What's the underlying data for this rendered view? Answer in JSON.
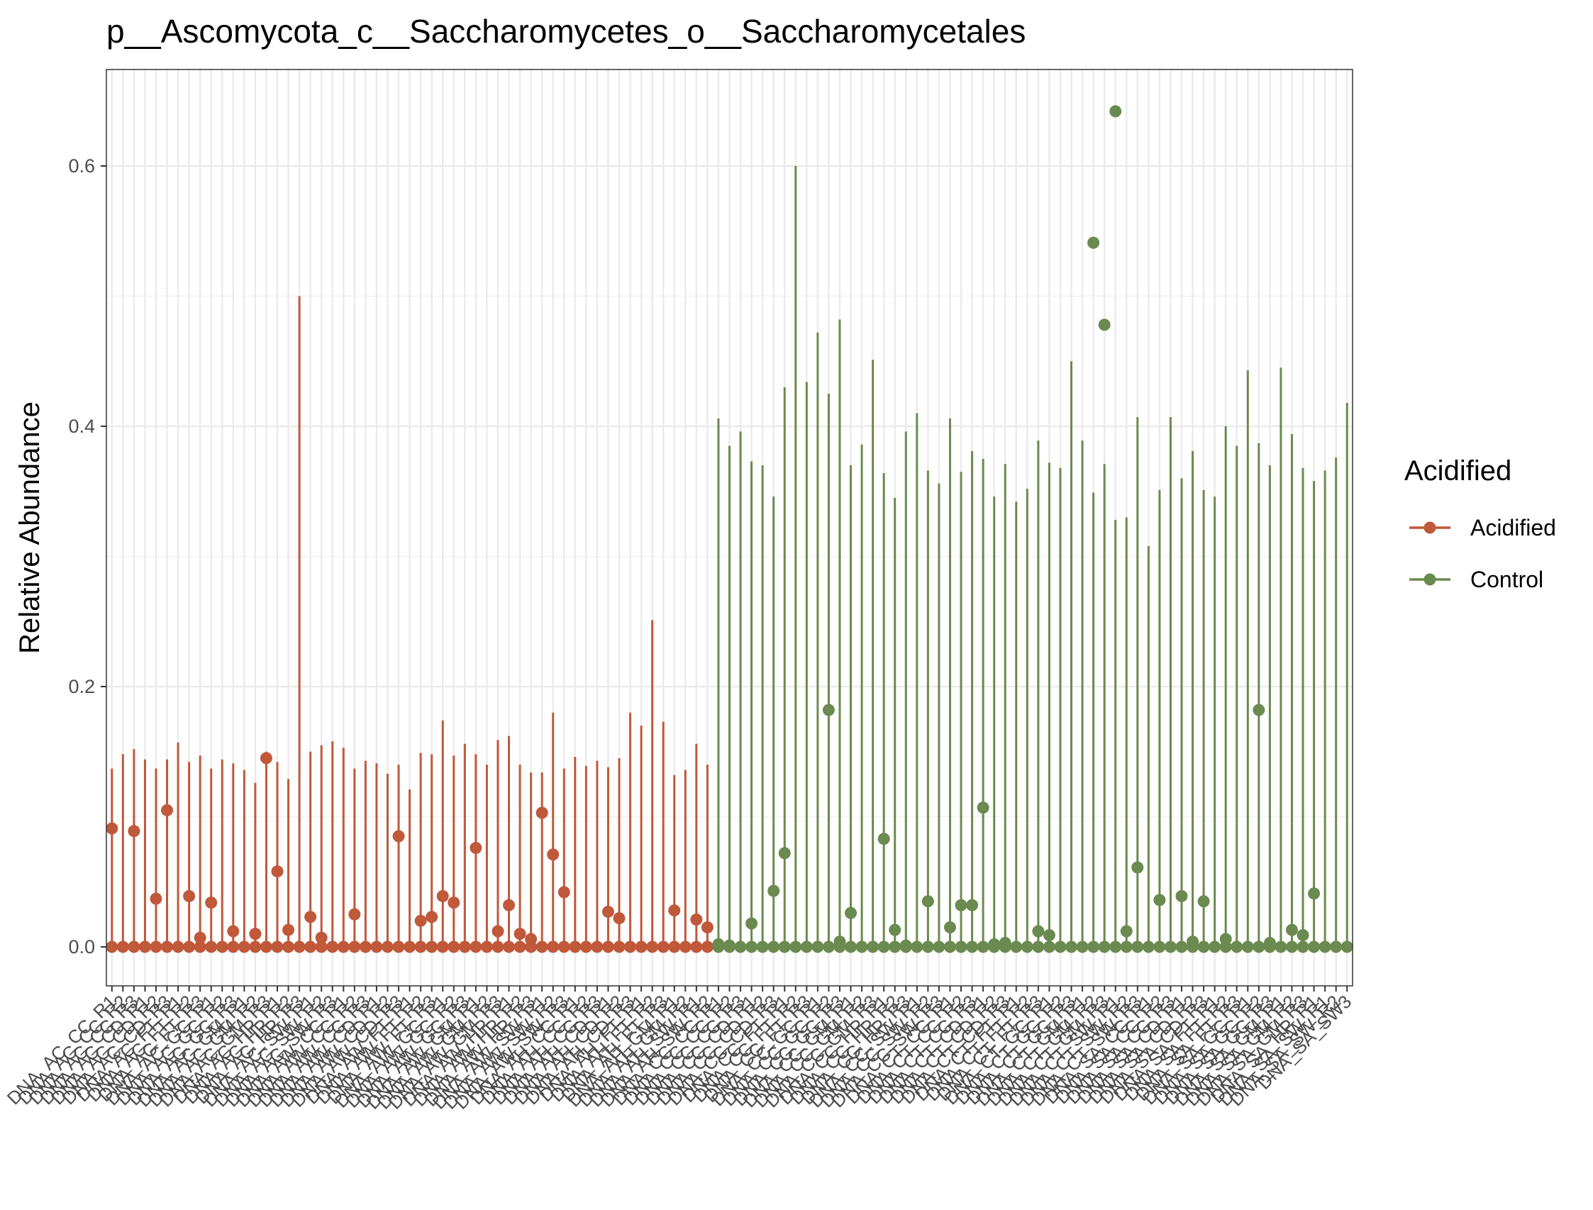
{
  "chart_data": {
    "type": "line",
    "title": "p__Ascomycota_c__Saccharomycetes_o__Saccharomycetales",
    "ylabel": "Relative Abundance",
    "xlabel": "",
    "yticks": [
      "0.0",
      "0.2",
      "0.4",
      "0.6"
    ],
    "ylim": [
      -0.032,
      0.672
    ],
    "grid": true,
    "legend": {
      "title": "Acidified",
      "position": "right",
      "entries": [
        {
          "label": "Acidified",
          "color": "#c0583a"
        },
        {
          "label": "Control",
          "color": "#6a8a4f"
        }
      ]
    },
    "series": [
      {
        "name": "Acidified",
        "color": "#c0583a",
        "samples": [
          {
            "max": 0.137,
            "points": [
              0.091,
              0.0
            ]
          },
          {
            "max": 0.148,
            "points": [
              0.0
            ]
          },
          {
            "max": 0.152,
            "points": [
              0.089,
              0.0
            ]
          },
          {
            "max": 0.144,
            "points": [
              0.0
            ]
          },
          {
            "max": 0.137,
            "points": [
              0.037,
              0.0
            ]
          },
          {
            "max": 0.144,
            "points": [
              0.105,
              0.0
            ]
          },
          {
            "max": 0.157,
            "points": [
              0.0
            ]
          },
          {
            "max": 0.142,
            "points": [
              0.039,
              0.0
            ]
          },
          {
            "max": 0.147,
            "points": [
              0.007,
              0.0
            ]
          },
          {
            "max": 0.137,
            "points": [
              0.034,
              0.0
            ]
          },
          {
            "max": 0.144,
            "points": [
              0.0
            ]
          },
          {
            "max": 0.141,
            "points": [
              0.012,
              0.0
            ]
          },
          {
            "max": 0.136,
            "points": [
              0.0
            ]
          },
          {
            "max": 0.126,
            "points": [
              0.01,
              0.0
            ]
          },
          {
            "max": 0.15,
            "points": [
              0.145,
              0.0
            ]
          },
          {
            "max": 0.142,
            "points": [
              0.058,
              0.0
            ]
          },
          {
            "max": 0.129,
            "points": [
              0.013,
              0.0
            ]
          },
          {
            "max": 0.5,
            "points": [
              0.0
            ]
          },
          {
            "max": 0.15,
            "points": [
              0.023,
              0.0
            ]
          },
          {
            "max": 0.155,
            "points": [
              0.007,
              0.0
            ]
          },
          {
            "max": 0.158,
            "points": [
              0.0
            ]
          },
          {
            "max": 0.153,
            "points": [
              0.0
            ]
          },
          {
            "max": 0.137,
            "points": [
              0.025,
              0.0
            ]
          },
          {
            "max": 0.143,
            "points": [
              0.0
            ]
          },
          {
            "max": 0.141,
            "points": [
              0.0
            ]
          },
          {
            "max": 0.133,
            "points": [
              0.0
            ]
          },
          {
            "max": 0.14,
            "points": [
              0.085,
              0.0
            ]
          },
          {
            "max": 0.121,
            "points": [
              0.0
            ]
          },
          {
            "max": 0.149,
            "points": [
              0.02,
              0.0
            ]
          },
          {
            "max": 0.148,
            "points": [
              0.023,
              0.0
            ]
          },
          {
            "max": 0.174,
            "points": [
              0.039,
              0.0
            ]
          },
          {
            "max": 0.147,
            "points": [
              0.034,
              0.0
            ]
          },
          {
            "max": 0.156,
            "points": [
              0.0
            ]
          },
          {
            "max": 0.148,
            "points": [
              0.076,
              0.0
            ]
          },
          {
            "max": 0.14,
            "points": [
              0.0
            ]
          },
          {
            "max": 0.159,
            "points": [
              0.012,
              0.0
            ]
          },
          {
            "max": 0.162,
            "points": [
              0.032,
              0.0
            ]
          },
          {
            "max": 0.14,
            "points": [
              0.01,
              0.0
            ]
          },
          {
            "max": 0.134,
            "points": [
              0.006,
              0.0
            ]
          },
          {
            "max": 0.134,
            "points": [
              0.103,
              0.0
            ]
          },
          {
            "max": 0.18,
            "points": [
              0.071,
              0.0
            ]
          },
          {
            "max": 0.137,
            "points": [
              0.042,
              0.0
            ]
          },
          {
            "max": 0.146,
            "points": [
              0.0
            ]
          },
          {
            "max": 0.139,
            "points": [
              0.0
            ]
          },
          {
            "max": 0.143,
            "points": [
              0.0
            ]
          },
          {
            "max": 0.138,
            "points": [
              0.027,
              0.0
            ]
          },
          {
            "max": 0.145,
            "points": [
              0.022,
              0.0
            ]
          },
          {
            "max": 0.18,
            "points": [
              0.0
            ]
          },
          {
            "max": 0.17,
            "points": [
              0.0
            ]
          },
          {
            "max": 0.251,
            "points": [
              0.0
            ]
          },
          {
            "max": 0.173,
            "points": [
              0.0
            ]
          },
          {
            "max": 0.132,
            "points": [
              0.028,
              0.0
            ]
          },
          {
            "max": 0.136,
            "points": [
              0.0
            ]
          },
          {
            "max": 0.156,
            "points": [
              0.021,
              0.0
            ]
          },
          {
            "max": 0.14,
            "points": [
              0.015,
              0.0
            ]
          }
        ]
      },
      {
        "name": "Control",
        "color": "#6a8a4f",
        "samples": [
          {
            "max": 0.406,
            "points": [
              0.002,
              0.0
            ]
          },
          {
            "max": 0.385,
            "points": [
              0.001,
              0.0
            ]
          },
          {
            "max": 0.396,
            "points": [
              0.0
            ]
          },
          {
            "max": 0.373,
            "points": [
              0.018,
              0.0
            ]
          },
          {
            "max": 0.37,
            "points": [
              0.0
            ]
          },
          {
            "max": 0.346,
            "points": [
              0.043,
              0.0
            ]
          },
          {
            "max": 0.43,
            "points": [
              0.072,
              0.0
            ]
          },
          {
            "max": 0.6,
            "points": [
              0.0
            ]
          },
          {
            "max": 0.434,
            "points": [
              0.0
            ]
          },
          {
            "max": 0.472,
            "points": [
              0.0
            ]
          },
          {
            "max": 0.425,
            "points": [
              0.182,
              0.0
            ]
          },
          {
            "max": 0.482,
            "points": [
              0.004,
              0.0
            ]
          },
          {
            "max": 0.37,
            "points": [
              0.026,
              0.0
            ]
          },
          {
            "max": 0.386,
            "points": [
              0.0
            ]
          },
          {
            "max": 0.451,
            "points": [
              0.0
            ]
          },
          {
            "max": 0.364,
            "points": [
              0.083,
              0.0
            ]
          },
          {
            "max": 0.345,
            "points": [
              0.013,
              0.0
            ]
          },
          {
            "max": 0.396,
            "points": [
              0.001,
              0.0
            ]
          },
          {
            "max": 0.41,
            "points": [
              0.0
            ]
          },
          {
            "max": 0.366,
            "points": [
              0.035,
              0.0
            ]
          },
          {
            "max": 0.356,
            "points": [
              0.0
            ]
          },
          {
            "max": 0.406,
            "points": [
              0.015,
              0.0
            ]
          },
          {
            "max": 0.365,
            "points": [
              0.032,
              0.0
            ]
          },
          {
            "max": 0.381,
            "points": [
              0.032,
              0.0
            ]
          },
          {
            "max": 0.375,
            "points": [
              0.107,
              0.0
            ]
          },
          {
            "max": 0.346,
            "points": [
              0.002,
              0.0
            ]
          },
          {
            "max": 0.371,
            "points": [
              0.003,
              0.0
            ]
          },
          {
            "max": 0.342,
            "points": [
              0.0
            ]
          },
          {
            "max": 0.352,
            "points": [
              0.0
            ]
          },
          {
            "max": 0.389,
            "points": [
              0.012,
              0.0
            ]
          },
          {
            "max": 0.372,
            "points": [
              0.009,
              0.0
            ]
          },
          {
            "max": 0.368,
            "points": [
              0.0
            ]
          },
          {
            "max": 0.45,
            "points": [
              0.0
            ]
          },
          {
            "max": 0.389,
            "points": [
              0.0
            ]
          },
          {
            "max": 0.349,
            "points": [
              0.541,
              0.0
            ]
          },
          {
            "max": 0.371,
            "points": [
              0.478,
              0.0
            ]
          },
          {
            "max": 0.328,
            "points": [
              0.642,
              0.0
            ]
          },
          {
            "max": 0.33,
            "points": [
              0.012,
              0.0
            ]
          },
          {
            "max": 0.407,
            "points": [
              0.061,
              0.0
            ]
          },
          {
            "max": 0.308,
            "points": [
              0.0
            ]
          },
          {
            "max": 0.351,
            "points": [
              0.036,
              0.0
            ]
          },
          {
            "max": 0.407,
            "points": [
              0.0
            ]
          },
          {
            "max": 0.36,
            "points": [
              0.039,
              0.0
            ]
          },
          {
            "max": 0.381,
            "points": [
              0.004,
              0.0
            ]
          },
          {
            "max": 0.351,
            "points": [
              0.035,
              0.0
            ]
          },
          {
            "max": 0.346,
            "points": [
              0.0
            ]
          },
          {
            "max": 0.4,
            "points": [
              0.006,
              0.0
            ]
          },
          {
            "max": 0.385,
            "points": [
              0.0
            ]
          },
          {
            "max": 0.443,
            "points": [
              0.0
            ]
          },
          {
            "max": 0.387,
            "points": [
              0.182,
              0.0
            ]
          },
          {
            "max": 0.37,
            "points": [
              0.003,
              0.0
            ]
          },
          {
            "max": 0.445,
            "points": [
              0.0
            ]
          },
          {
            "max": 0.394,
            "points": [
              0.013,
              0.0
            ]
          },
          {
            "max": 0.368,
            "points": [
              0.009,
              0.0
            ]
          },
          {
            "max": 0.358,
            "points": [
              0.041,
              0.0
            ]
          },
          {
            "max": 0.366,
            "points": [
              0.0
            ]
          },
          {
            "max": 0.376,
            "points": [
              0.0
            ]
          },
          {
            "max": 0.418,
            "points": [
              0.0
            ]
          }
        ]
      }
    ],
    "xticklabels": [
      "DNA_AC_CC_R1",
      "DNA_AC_CC_R2",
      "DNA_AC_CC_R3",
      "DNA_AC_CD_R1",
      "DNA_AC_CD_R2",
      "DNA_AC_CD_R3",
      "DNA_AC_FT_R1",
      "DNA_AC_FT_R2",
      "DNA_AC_FT_R3",
      "DNA_AC_GC_R1",
      "DNA_AC_GC_R2",
      "DNA_AC_GC_R3",
      "DNA_AC_GM_R1",
      "DNA_AC_GM_R2",
      "DNA_AC_GM_R3",
      "DNA_AC_HP_R1",
      "DNA_AC_HP_R2",
      "DNA_AC_HP_R3",
      "DNA_AC_SW_R1",
      "DNA_AC_SW_R2",
      "DNA_AC_SW_R3",
      "DNA_AW_CC_R1",
      "DNA_AW_CC_R2",
      "DNA_AW_CC_R3",
      "DNA_AW_CD_R1",
      "DNA_AW_CD_R2",
      "DNA_AW_CD_R3",
      "DNA_AW_FT_R1",
      "DNA_AW_FT_R2",
      "DNA_AW_FT_R3",
      "DNA_AW_GC_R1",
      "DNA_AW_GC_R2",
      "DNA_AW_GC_R3",
      "DNA_AW_GM_R1",
      "DNA_AW_GM_R2",
      "DNA_AW_GM_R3",
      "DNA_AW_HP_R1",
      "DNA_AW_HP_R2",
      "DNA_AW_HP_R3",
      "DNA_AW_SW_R1",
      "DNA_AW_SW_R2",
      "DNA_AW_SW_R3",
      "DNA_AH_CC_R1",
      "DNA_AH_CC_R2",
      "DNA_AH_CC_R3",
      "DNA_AH_CD_R1",
      "DNA_AH_CD_R2",
      "DNA_AH_CD_R3",
      "DNA_AH_FT_R1",
      "DNA_AH_FT_R2",
      "DNA_AH_FT_R3",
      "DNA_AH_GM_R1",
      "DNA_AH_GM_R2",
      "DNA_AH_SW_R1",
      "DNA_AH_SW_R2",
      "DNA_CC_CC_R1",
      "DNA_CC_CC_R2",
      "DNA_CC_CC_R3",
      "DNA_CC_CD_R1",
      "DNA_CC_CD_R2",
      "DNA_CC_CD_R3",
      "DNA_CC_FT_R1",
      "DNA_CC_FT_R2",
      "DNA_CC_FT_R3",
      "DNA_CC_GC_R1",
      "DNA_CC_GC_R2",
      "DNA_CC_GC_R3",
      "DNA_CC_GM_R1",
      "DNA_CC_GM_R2",
      "DNA_CC_GM_R3",
      "DNA_CC_HP_R1",
      "DNA_CC_HP_R2",
      "DNA_CC_HP_R3",
      "DNA_CC_SW_R1",
      "DNA_CC_SW_R2",
      "DNA_CC_SW_R3",
      "DNA_CT_CC_R1",
      "DNA_CT_CC_R2",
      "DNA_CT_CC_R3",
      "DNA_CT_CD_R1",
      "DNA_CT_CD_R2",
      "DNA_CT_CD_R3",
      "DNA_CT_FT_R1",
      "DNA_CT_FT_R2",
      "DNA_CT_FT_R3",
      "DNA_CT_GC_R1",
      "DNA_CT_GC_R2",
      "DNA_CT_GC_R3",
      "DNA_CT_GM_R1",
      "DNA_CT_GM_R2",
      "DNA_CT_GM_R3",
      "DNA_CT_SW_R1",
      "DNA_CT_SW_R2",
      "DNA_CT_SW_R3",
      "DNA_SA_CC_R1",
      "DNA_SA_CC_R2",
      "DNA_SA_CC_R3",
      "DNA_SA_CD_R1",
      "DNA_SA_CD_R2",
      "DNA_SA_CD_R3",
      "DNA_SA_FT_R1",
      "DNA_SA_FT_R2",
      "DNA_SA_FT_R3",
      "DNA_SA_GC_R1",
      "DNA_SA_GC_R2",
      "DNA_SA_GC_R3",
      "DNA_SA_GM_R1",
      "DNA_SA_GM_R2",
      "DNA_SA_GM_R3",
      "DNA_SA_HP_R1",
      "DNA_SA_SW_R1",
      "DNA_SA_SW_R2",
      "DNA_SA_SW3"
    ]
  }
}
